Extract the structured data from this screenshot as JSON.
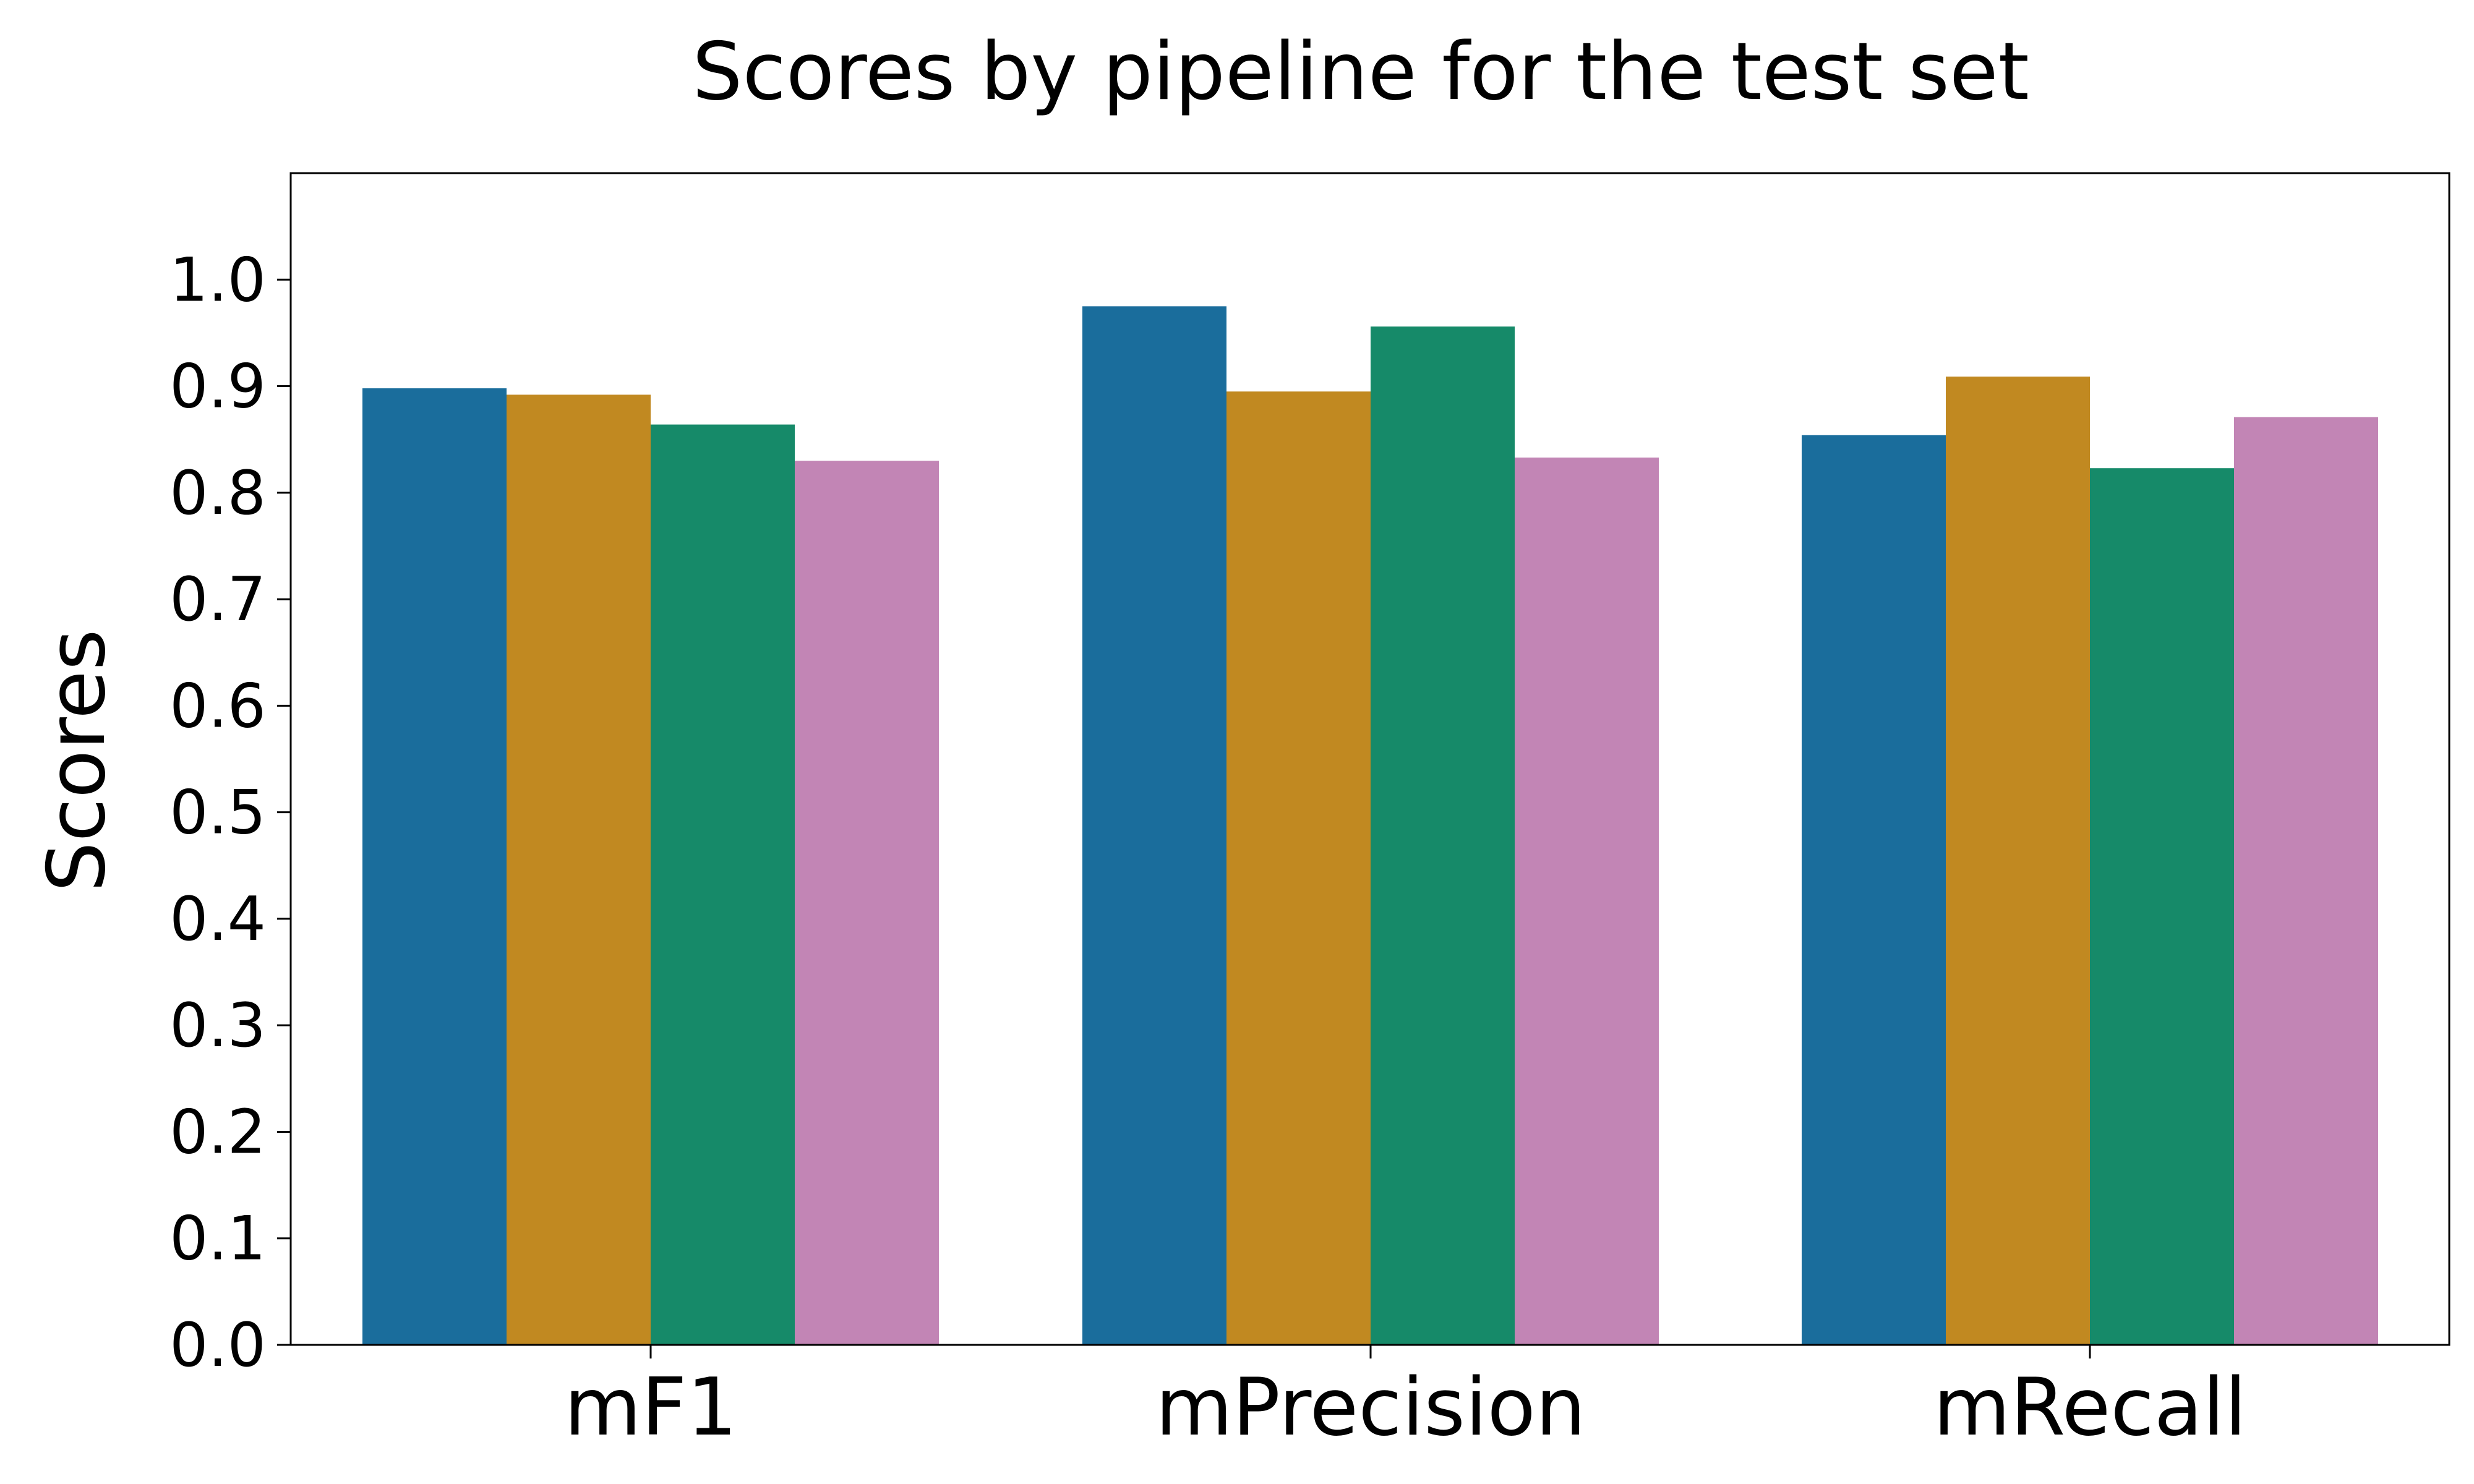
{
  "chart_data": {
    "type": "bar",
    "title": "Scores by pipeline for the test set",
    "xlabel": "",
    "ylabel": "Scores",
    "categories": [
      "mF1",
      "mPrecision",
      "mRecall"
    ],
    "ylim": [
      0,
      1.1
    ],
    "yticks": [
      0.0,
      0.1,
      0.2,
      0.3,
      0.4,
      0.5,
      0.6,
      0.7,
      0.8,
      0.9,
      1.0
    ],
    "ytick_labels": [
      "0.0",
      "0.1",
      "0.2",
      "0.3",
      "0.4",
      "0.5",
      "0.6",
      "0.7",
      "0.8",
      "0.9",
      "1.0"
    ],
    "grid": false,
    "legend": "none",
    "series": [
      {
        "values": [
          0.898,
          0.975,
          0.854
        ],
        "color": "#1a6d9c"
      },
      {
        "values": [
          0.892,
          0.895,
          0.909
        ],
        "color": "#c18921"
      },
      {
        "values": [
          0.864,
          0.956,
          0.823
        ],
        "color": "#168a69"
      },
      {
        "values": [
          0.83,
          0.833,
          0.871
        ],
        "color": "#c285b5"
      }
    ]
  }
}
